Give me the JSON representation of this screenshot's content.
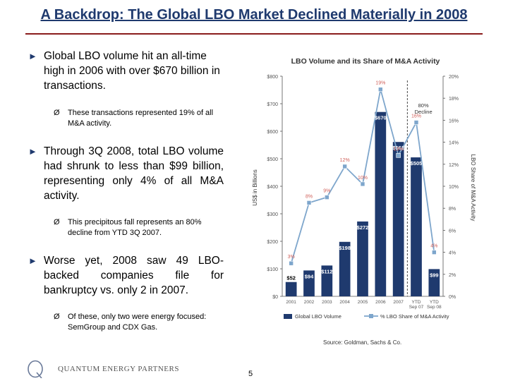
{
  "slide": {
    "title": "A Backdrop:  The Global LBO Market Declined Materially in 2008",
    "bullets": [
      {
        "arrow": "►",
        "text": "Global LBO volume hit an all-time high in 2006 with over $670 billion in transactions."
      },
      {
        "arrow": "►",
        "text": "Through 3Q 2008, total LBO volume had shrunk to less than $99 billion, representing only 4% of all M&A activity."
      },
      {
        "arrow": "►",
        "text": "Worse yet, 2008 saw 49 LBO-backed companies file for bankruptcy vs. only 2 in 2007."
      }
    ],
    "sub_bullets": [
      {
        "arrow": "Ø",
        "text": "These transactions represented 19% of all M&A activity."
      },
      {
        "arrow": "Ø",
        "text": "This precipitous fall represents an 80% decline from YTD 3Q 2007."
      },
      {
        "arrow": "Ø",
        "text": "Of these, only two were energy focused:  SemGroup and CDX Gas."
      }
    ],
    "source": "Source:  Goldman, Sachs & Co.",
    "footer_company": "QUANTUM ENERGY PARTNERS",
    "page_number": "5"
  },
  "colors": {
    "title": "#1f3a6e",
    "rule": "#8a1c1c",
    "bar": "#1f3a6e",
    "line": "#7ea6cc"
  },
  "chart_data": {
    "type": "bar",
    "title": "LBO Volume and its Share of M&A Activity",
    "categories": [
      "2001",
      "2002",
      "2003",
      "2004",
      "2005",
      "2006",
      "2007",
      "YTD",
      "YTD"
    ],
    "category_sublabels": [
      "",
      "",
      "",
      "",
      "",
      "",
      "",
      "Sep 07",
      "Sep 08"
    ],
    "ylabel": "US$ in Billions",
    "y2label": "LBO Share of M&A Activity",
    "ylim": [
      0,
      800
    ],
    "y_ticks": [
      "$0",
      "$100",
      "$200",
      "$300",
      "$400",
      "$500",
      "$600",
      "$700",
      "$800"
    ],
    "y2lim": [
      0,
      20
    ],
    "y2_ticks": [
      "0%",
      "2%",
      "4%",
      "6%",
      "8%",
      "10%",
      "12%",
      "14%",
      "16%",
      "18%",
      "20%"
    ],
    "series": [
      {
        "name": "Global LBO Volume",
        "kind": "bar",
        "values": [
          52,
          94,
          112,
          198,
          272,
          670,
          561,
          505,
          99
        ],
        "labels": [
          "$52",
          "$94",
          "$112",
          "$198",
          "$272",
          "$670",
          "$561",
          "$505",
          "$99"
        ]
      },
      {
        "name": "% LBO Share of M&A Activity",
        "kind": "line",
        "values": [
          3,
          8.5,
          9,
          11.8,
          10.2,
          18.8,
          12.8,
          15.8,
          4
        ],
        "labels": [
          "3%",
          "8%",
          "9%",
          "12%",
          "10%",
          "19%",
          "13%",
          "16%",
          "4%"
        ]
      }
    ],
    "annotations": [
      {
        "text": "80%",
        "text2": "Decline"
      }
    ],
    "grid": false,
    "legend": "bottom"
  }
}
